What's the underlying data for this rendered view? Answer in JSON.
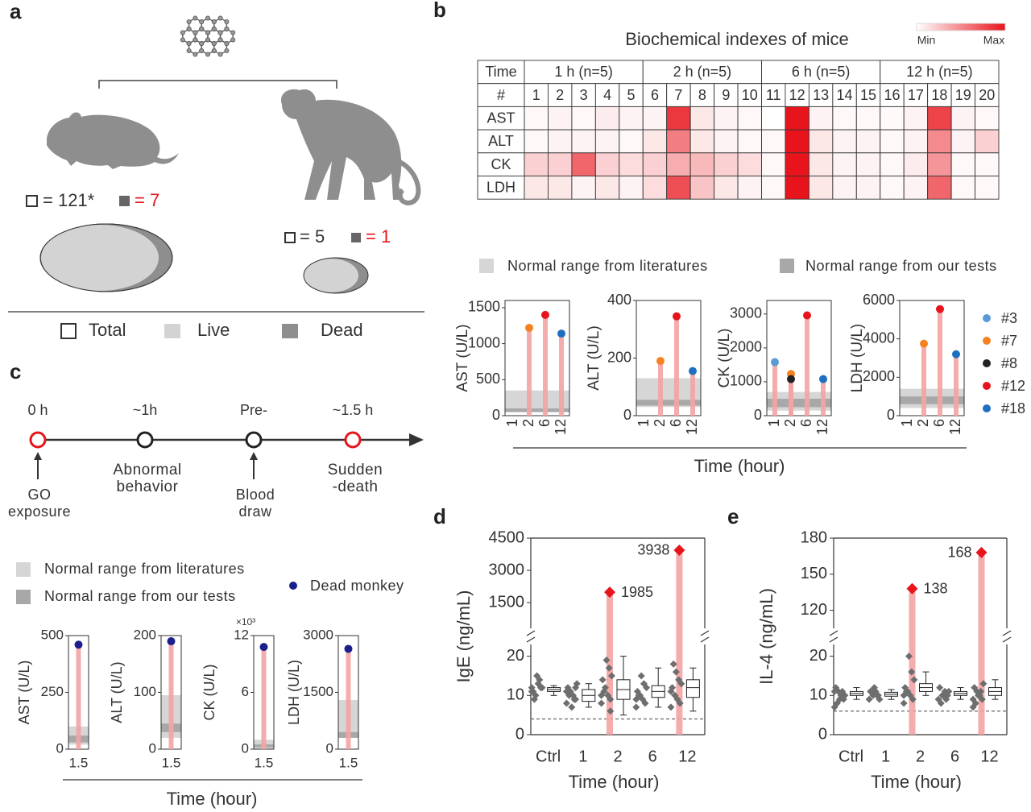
{
  "panel_labels": [
    "a",
    "b",
    "c",
    "d",
    "e"
  ],
  "panel_a": {
    "mouse_total": "= 121*",
    "mouse_dead": "= 7",
    "monkey_total": "= 5",
    "monkey_dead": "= 1",
    "legend": [
      "Total",
      "Live",
      "Dead"
    ]
  },
  "heatmap": {
    "title": "Biochemical indexes of mice",
    "scale_min": "Min",
    "scale_max": "Max",
    "corner_top": "Time",
    "corner_bottom": "#",
    "color": "#e8141c",
    "groups": [
      "1 h (n=5)",
      "2 h (n=5)",
      "6 h (n=5)",
      "12 h (n=5)"
    ],
    "ids": [
      1,
      2,
      3,
      4,
      5,
      6,
      7,
      8,
      9,
      10,
      11,
      12,
      13,
      14,
      15,
      16,
      17,
      18,
      19,
      20
    ],
    "rows": [
      {
        "name": "AST",
        "values": [
          0.03,
          0.05,
          0.03,
          0.08,
          0.05,
          0.05,
          0.85,
          0.1,
          0.05,
          0.03,
          0,
          1,
          0.05,
          0.03,
          0.03,
          0.02,
          0.05,
          0.8,
          0.05,
          0.03
        ]
      },
      {
        "name": "ALT",
        "values": [
          0.03,
          0.05,
          0.05,
          0.05,
          0.03,
          0.1,
          0.55,
          0.1,
          0.05,
          0.03,
          0.03,
          1,
          0.1,
          0.05,
          0.05,
          0.03,
          0.05,
          0.5,
          0.05,
          0.2
        ]
      },
      {
        "name": "CK",
        "values": [
          0.2,
          0.2,
          0.65,
          0.2,
          0.15,
          0.2,
          0.35,
          0.3,
          0.2,
          0.15,
          0.03,
          1,
          0.1,
          0.05,
          0.05,
          0.03,
          0.08,
          0.45,
          0.03,
          0.03
        ]
      },
      {
        "name": "LDH",
        "values": [
          0.1,
          0.1,
          0.05,
          0.1,
          0.05,
          0.15,
          0.75,
          0.25,
          0.1,
          0.05,
          0.03,
          1,
          0.1,
          0.05,
          0.05,
          0.03,
          0.05,
          0.65,
          0.03,
          0.03
        ]
      }
    ]
  },
  "panel_b_legend": {
    "ranges": [
      "Normal range from literatures",
      "Normal range from our tests"
    ],
    "series": [
      {
        "name": "#3",
        "color": "#5b9bd5"
      },
      {
        "name": "#7",
        "color": "#f58220"
      },
      {
        "name": "#8",
        "color": "#222222"
      },
      {
        "name": "#12",
        "color": "#e8141c"
      },
      {
        "name": "#18",
        "color": "#1f6fc0"
      }
    ],
    "xlabel": "Time (hour)"
  },
  "panel_c": {
    "events": [
      {
        "time": "0 h",
        "note": [
          "GO",
          "exposure"
        ],
        "arrow": true,
        "color": "#e8141c"
      },
      {
        "time": "~1h",
        "note": [
          "Abnormal",
          "behavior"
        ],
        "arrow": false,
        "color": "#222222"
      },
      {
        "time": "Pre-",
        "note": [
          "Blood",
          "draw"
        ],
        "arrow": true,
        "color": "#222222"
      },
      {
        "time": "~1.5 h",
        "note": [
          "Sudden",
          "-death"
        ],
        "arrow": false,
        "color": "#e8141c"
      }
    ],
    "ranges": [
      "Normal range from literatures",
      "Normal range from our tests"
    ],
    "dead": "Dead monkey",
    "dead_color": "#1a1f8c",
    "xlabel": "Time (hour)"
  },
  "chart_data": [
    {
      "type": "lollipop",
      "ylabel": "AST (U/L)",
      "categories": [
        "1",
        "2",
        "6",
        "12"
      ],
      "ylim": [
        0,
        1600
      ],
      "yticks": [
        0,
        500,
        1000,
        1500
      ],
      "normal_range_literature": [
        50,
        350
      ],
      "normal_range_ours": [
        50,
        100
      ],
      "series": [
        {
          "values": [
            null,
            null,
            null,
            null
          ]
        },
        {
          "values": [
            null,
            1220,
            null,
            null
          ]
        },
        {
          "values": [
            null,
            null,
            null,
            null
          ]
        },
        {
          "values": [
            null,
            null,
            1400,
            null
          ]
        },
        {
          "values": [
            null,
            null,
            null,
            1140
          ]
        }
      ]
    },
    {
      "type": "lollipop",
      "ylabel": "ALT (U/L)",
      "categories": [
        "1",
        "2",
        "6",
        "12"
      ],
      "ylim": [
        0,
        400
      ],
      "yticks": [
        0,
        200,
        400
      ],
      "normal_range_literature": [
        30,
        130
      ],
      "normal_range_ours": [
        35,
        55
      ],
      "series": [
        {
          "values": [
            null,
            null,
            null,
            null
          ]
        },
        {
          "values": [
            null,
            190,
            null,
            null
          ]
        },
        {
          "values": [
            null,
            null,
            null,
            null
          ]
        },
        {
          "values": [
            null,
            null,
            345,
            null
          ]
        },
        {
          "values": [
            null,
            null,
            null,
            155
          ]
        }
      ]
    },
    {
      "type": "lollipop",
      "ylabel": "CK (U/L)",
      "categories": [
        "1",
        "2",
        "6",
        "12"
      ],
      "ylim": [
        0,
        3400
      ],
      "yticks": [
        0,
        1000,
        2000,
        3000
      ],
      "normal_range_literature": [
        150,
        700
      ],
      "normal_range_ours": [
        250,
        500
      ],
      "series": [
        {
          "values": [
            1580,
            null,
            null,
            null
          ]
        },
        {
          "values": [
            null,
            1230,
            null,
            null
          ]
        },
        {
          "values": [
            null,
            1080,
            null,
            null
          ]
        },
        {
          "values": [
            null,
            null,
            2960,
            null
          ]
        },
        {
          "values": [
            null,
            null,
            null,
            1080
          ]
        }
      ]
    },
    {
      "type": "lollipop",
      "ylabel": "LDH (U/L)",
      "categories": [
        "1",
        "2",
        "6",
        "12"
      ],
      "ylim": [
        0,
        6000
      ],
      "yticks": [
        0,
        2000,
        4000,
        6000
      ],
      "normal_range_literature": [
        400,
        1400
      ],
      "normal_range_ours": [
        600,
        1000
      ],
      "series": [
        {
          "values": [
            null,
            null,
            null,
            null
          ]
        },
        {
          "values": [
            null,
            3750,
            null,
            null
          ]
        },
        {
          "values": [
            null,
            null,
            null,
            null
          ]
        },
        {
          "values": [
            null,
            null,
            5550,
            null
          ]
        },
        {
          "values": [
            null,
            null,
            null,
            3200
          ]
        }
      ]
    },
    {
      "type": "lollipop",
      "ylabel": "AST (U/L)",
      "categories": [
        "1.5"
      ],
      "values": [
        460
      ],
      "ylim": [
        0,
        500
      ],
      "yticks": [
        0,
        250,
        500
      ],
      "normal_range_literature": [
        20,
        100
      ],
      "normal_range_ours": [
        30,
        60
      ]
    },
    {
      "type": "lollipop",
      "ylabel": "ALT (U/L)",
      "categories": [
        "1.5"
      ],
      "values": [
        190
      ],
      "ylim": [
        0,
        200
      ],
      "yticks": [
        0,
        100,
        200
      ],
      "normal_range_literature": [
        20,
        95
      ],
      "normal_range_ours": [
        30,
        45
      ]
    },
    {
      "type": "lollipop",
      "ylabel": "CK (U/L)",
      "multiplier": "×10³",
      "categories": [
        "1.5"
      ],
      "values": [
        10.8
      ],
      "ylim": [
        0,
        12
      ],
      "yticks": [
        0,
        6,
        12
      ],
      "normal_range_literature": [
        0,
        1
      ],
      "normal_range_ours": [
        0.2,
        0.5
      ]
    },
    {
      "type": "lollipop",
      "ylabel": "LDH (U/L)",
      "categories": [
        "1.5"
      ],
      "values": [
        2650
      ],
      "ylim": [
        0,
        3000
      ],
      "yticks": [
        0,
        1500,
        3000
      ],
      "normal_range_literature": [
        300,
        1300
      ],
      "normal_range_ours": [
        300,
        450
      ]
    },
    {
      "type": "box",
      "ylabel": "IgE (ng/mL)",
      "xlabel": "Time (hour)",
      "categories": [
        "Ctrl",
        "1",
        "2",
        "6",
        "12"
      ],
      "ylim": [
        0,
        23
      ],
      "yticks": [
        0,
        10,
        20
      ],
      "ylim_upper": [
        300,
        4500
      ],
      "yticks_upper": [
        1500,
        3000,
        4500
      ],
      "reference_line": 4,
      "points": [
        [
          11,
          12,
          13,
          10,
          11,
          12,
          14,
          15,
          9,
          12
        ],
        [
          8,
          9,
          10,
          11,
          12,
          13,
          9,
          7,
          10,
          11,
          12
        ],
        [
          8,
          9,
          10,
          12,
          14,
          15,
          17,
          19,
          11,
          10,
          6
        ],
        [
          7,
          8,
          9,
          10,
          11,
          12,
          13,
          15,
          10,
          9
        ],
        [
          7,
          8,
          9,
          10,
          12,
          13,
          14,
          16,
          18,
          11
        ]
      ],
      "boxes": [
        [
          10,
          11,
          11.5,
          12,
          12.5
        ],
        [
          7,
          8.5,
          10,
          11.5,
          13
        ],
        [
          5,
          9,
          11.5,
          14,
          20
        ],
        [
          7,
          9.5,
          11,
          12.5,
          17
        ],
        [
          6,
          9.5,
          12,
          14,
          17
        ]
      ],
      "highlight": [
        null,
        null,
        1985,
        null,
        3938
      ],
      "highlight_color": "#e8141c"
    },
    {
      "type": "box",
      "ylabel": "IL-4 (ng/mL)",
      "xlabel": "Time (hour)",
      "categories": [
        "Ctrl",
        "1",
        "2",
        "6",
        "12"
      ],
      "ylim": [
        0,
        23
      ],
      "yticks": [
        0,
        10,
        20
      ],
      "ylim_upper": [
        105,
        180
      ],
      "yticks_upper": [
        120,
        150,
        180
      ],
      "reference_line": 6,
      "points": [
        [
          7,
          9,
          10,
          11,
          12,
          10,
          11,
          9,
          8,
          11
        ],
        [
          9,
          10,
          11,
          10,
          11,
          9,
          10,
          12,
          11
        ],
        [
          8,
          9,
          10,
          11,
          12,
          14,
          16,
          20,
          11,
          10
        ],
        [
          9,
          10,
          11,
          10,
          12,
          11,
          9,
          10,
          8
        ],
        [
          7,
          9,
          10,
          11,
          12,
          13,
          11,
          10,
          8,
          9
        ]
      ],
      "boxes": [
        [
          9,
          10,
          10.5,
          11,
          12
        ],
        [
          9,
          9.8,
          10.3,
          10.8,
          11.5
        ],
        [
          10,
          11,
          12,
          13,
          16
        ],
        [
          9,
          10,
          10.5,
          11,
          12
        ],
        [
          9,
          10,
          11,
          12,
          14
        ]
      ],
      "highlight": [
        null,
        null,
        138,
        null,
        168
      ],
      "highlight_color": "#e8141c"
    }
  ]
}
